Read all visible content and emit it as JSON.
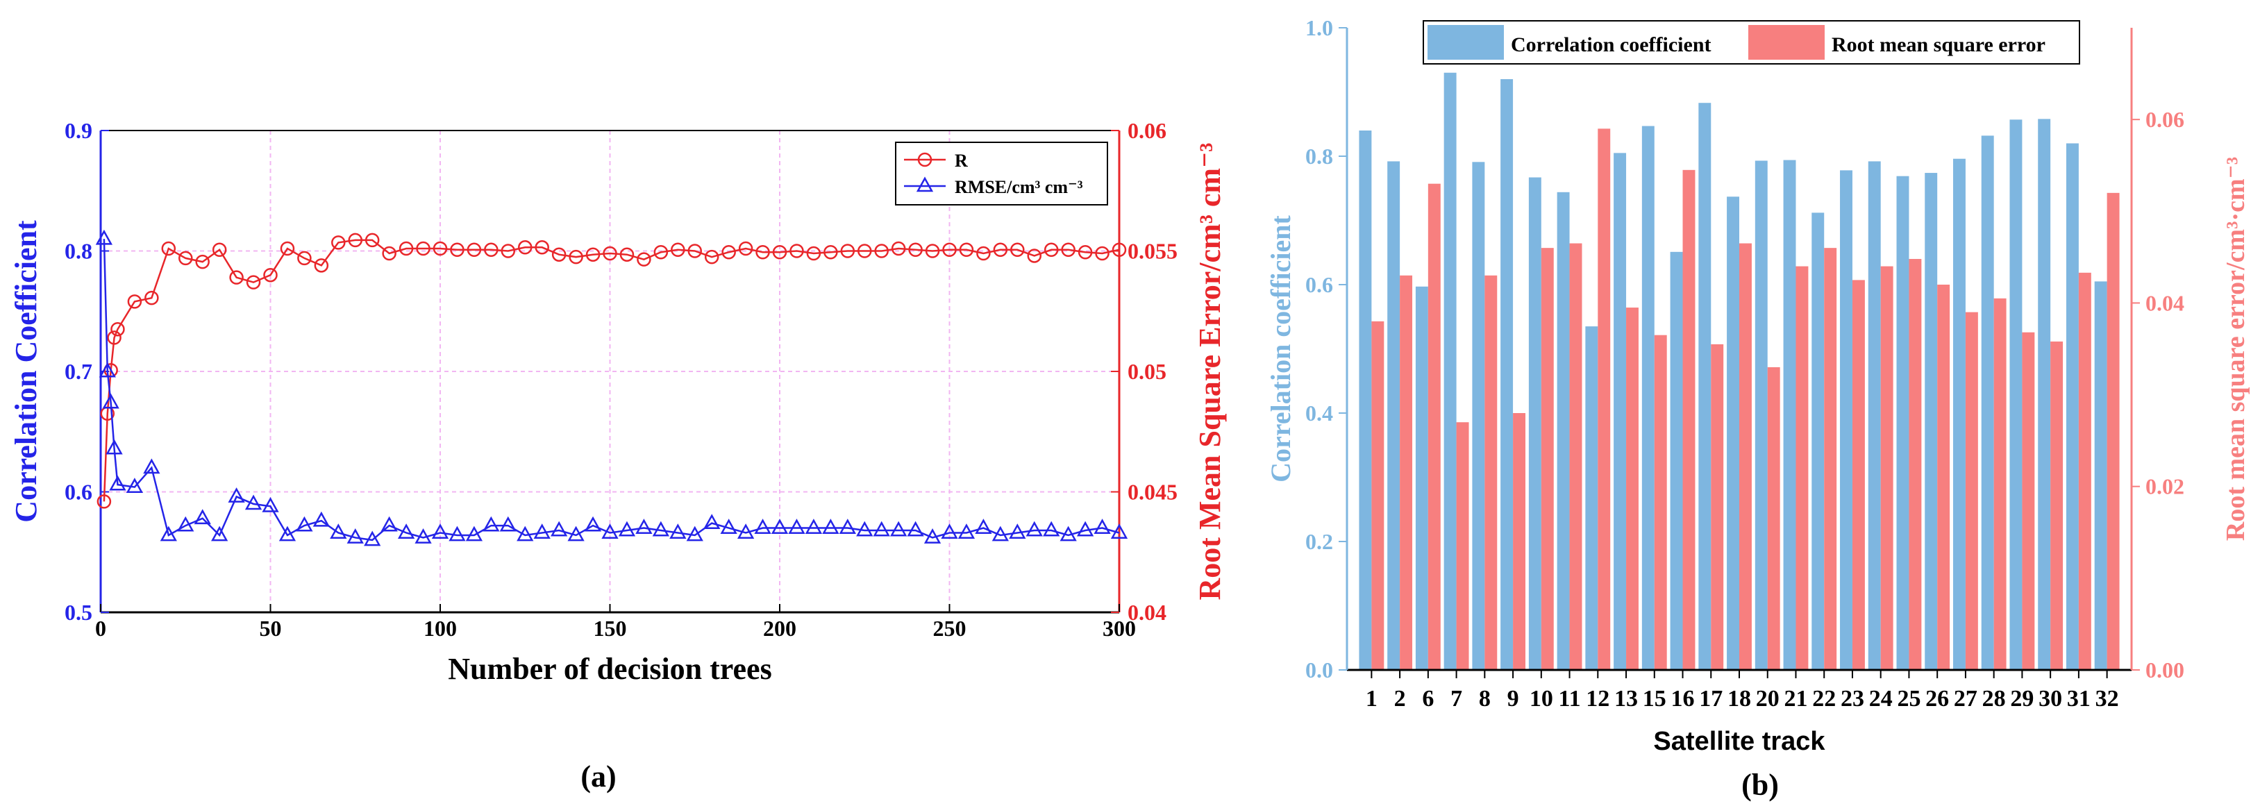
{
  "figure": {
    "panel_a_label": "(a)",
    "panel_b_label": "(b)"
  },
  "chart_data": [
    {
      "type": "line",
      "xlabel": "Number of decision trees",
      "ylabel": "Correlation Coefficient",
      "y2label": "Root Mean Square Error/cm³ cm⁻³",
      "xlim": [
        0,
        300
      ],
      "ylim": [
        0.5,
        0.9
      ],
      "y2lim": [
        0.04,
        0.06
      ],
      "xticks": [
        "0",
        "50",
        "100",
        "150",
        "200",
        "250",
        "300"
      ],
      "yticks": [
        "0.5",
        "0.6",
        "0.7",
        "0.8",
        "0.9"
      ],
      "y2ticks": [
        "0.04",
        "0.045",
        "0.05",
        "0.055",
        "0.06"
      ],
      "grid": true,
      "legend_position": "top-right",
      "colors": {
        "R": "#e8262a",
        "RMSE": "#2424e8"
      },
      "series": [
        {
          "name": "R",
          "axis": "left",
          "marker": "circle",
          "x": [
            1,
            2,
            3,
            4,
            5,
            10,
            15,
            20,
            25,
            30,
            35,
            40,
            45,
            50,
            55,
            60,
            65,
            70,
            75,
            80,
            85,
            90,
            95,
            100,
            105,
            110,
            115,
            120,
            125,
            130,
            135,
            140,
            145,
            150,
            155,
            160,
            165,
            170,
            175,
            180,
            185,
            190,
            195,
            200,
            205,
            210,
            215,
            220,
            225,
            230,
            235,
            240,
            245,
            250,
            255,
            260,
            265,
            270,
            275,
            280,
            285,
            290,
            295,
            300
          ],
          "values": [
            0.592,
            0.665,
            0.701,
            0.728,
            0.735,
            0.758,
            0.761,
            0.802,
            0.794,
            0.791,
            0.801,
            0.778,
            0.774,
            0.78,
            0.802,
            0.794,
            0.788,
            0.807,
            0.809,
            0.809,
            0.798,
            0.802,
            0.802,
            0.802,
            0.801,
            0.801,
            0.801,
            0.8,
            0.803,
            0.803,
            0.797,
            0.795,
            0.797,
            0.798,
            0.797,
            0.793,
            0.799,
            0.801,
            0.8,
            0.795,
            0.799,
            0.802,
            0.799,
            0.799,
            0.8,
            0.798,
            0.799,
            0.8,
            0.8,
            0.8,
            0.802,
            0.801,
            0.8,
            0.801,
            0.801,
            0.798,
            0.801,
            0.801,
            0.796,
            0.801,
            0.801,
            0.799,
            0.798,
            0.801
          ]
        },
        {
          "name": "RMSE/cm³ cm⁻³",
          "axis": "right",
          "marker": "triangle",
          "x": [
            1,
            2,
            3,
            4,
            5,
            10,
            15,
            20,
            25,
            30,
            35,
            40,
            45,
            50,
            55,
            60,
            65,
            70,
            75,
            80,
            85,
            90,
            95,
            100,
            105,
            110,
            115,
            120,
            125,
            130,
            135,
            140,
            145,
            150,
            155,
            160,
            165,
            170,
            175,
            180,
            185,
            190,
            195,
            200,
            205,
            210,
            215,
            220,
            225,
            230,
            235,
            240,
            245,
            250,
            255,
            260,
            265,
            270,
            275,
            280,
            285,
            290,
            295,
            300
          ],
          "values": [
            0.0555,
            0.05,
            0.0487,
            0.0468,
            0.0453,
            0.0452,
            0.046,
            0.0432,
            0.0436,
            0.0439,
            0.0432,
            0.0448,
            0.0445,
            0.0444,
            0.0432,
            0.0436,
            0.0438,
            0.0433,
            0.0431,
            0.043,
            0.0436,
            0.0433,
            0.0431,
            0.0433,
            0.0432,
            0.0432,
            0.0436,
            0.0436,
            0.0432,
            0.0433,
            0.0434,
            0.0432,
            0.0436,
            0.0433,
            0.0434,
            0.0435,
            0.0434,
            0.0433,
            0.0432,
            0.0437,
            0.0435,
            0.0433,
            0.0435,
            0.0435,
            0.0435,
            0.0435,
            0.0435,
            0.0435,
            0.0434,
            0.0434,
            0.0434,
            0.0434,
            0.0431,
            0.0433,
            0.0433,
            0.0435,
            0.0432,
            0.0433,
            0.0434,
            0.0434,
            0.0432,
            0.0434,
            0.0435,
            0.0433
          ]
        }
      ]
    },
    {
      "type": "bar",
      "xlabel": "Satellite track",
      "ylabel": "Correlation coefficient",
      "y2label": "Root mean square error/cm³·cm⁻³",
      "ylim": [
        0.0,
        1.0
      ],
      "y2lim": [
        0.0,
        0.07
      ],
      "yticks": [
        "0.0",
        "0.2",
        "0.4",
        "0.6",
        "0.8",
        "1.0"
      ],
      "y2ticks": [
        "0.00",
        "0.02",
        "0.04",
        "0.06"
      ],
      "legend_position": "top",
      "colors": {
        "correlation": "#7eb6e0",
        "rmse": "#f77f7f"
      },
      "categories": [
        "1",
        "2",
        "6",
        "7",
        "8",
        "9",
        "10",
        "11",
        "12",
        "13",
        "15",
        "16",
        "17",
        "18",
        "20",
        "21",
        "22",
        "23",
        "24",
        "25",
        "26",
        "27",
        "28",
        "29",
        "30",
        "31",
        "32"
      ],
      "series": [
        {
          "name": "Correlation coefficient",
          "axis": "left",
          "values": [
            0.84,
            0.792,
            0.597,
            0.93,
            0.791,
            0.92,
            0.767,
            0.744,
            0.535,
            0.805,
            0.847,
            0.651,
            0.883,
            0.737,
            0.793,
            0.794,
            0.712,
            0.778,
            0.792,
            0.769,
            0.774,
            0.796,
            0.832,
            0.857,
            0.858,
            0.82,
            0.605
          ]
        },
        {
          "name": "Root mean square error",
          "axis": "right",
          "values": [
            0.038,
            0.043,
            0.053,
            0.027,
            0.043,
            0.028,
            0.046,
            0.0465,
            0.059,
            0.0395,
            0.0365,
            0.0545,
            0.0355,
            0.0465,
            0.033,
            0.044,
            0.046,
            0.0425,
            0.044,
            0.0448,
            0.042,
            0.039,
            0.0405,
            0.0368,
            0.0358,
            0.0433,
            0.052
          ]
        }
      ]
    }
  ]
}
